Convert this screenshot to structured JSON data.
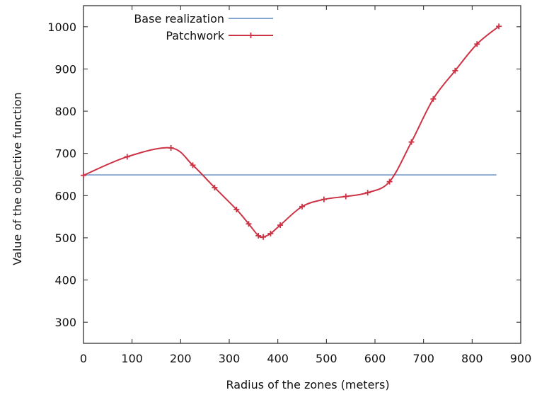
{
  "chart_data": {
    "type": "line",
    "xlabel": "Radius of the zones (meters)",
    "ylabel": "Value of the objective function",
    "xlim": [
      0,
      900
    ],
    "ylim": [
      250,
      1050
    ],
    "x_ticks": [
      "0",
      "100",
      "200",
      "300",
      "400",
      "500",
      "600",
      "700",
      "800",
      "900"
    ],
    "y_ticks": [
      "300",
      "400",
      "500",
      "600",
      "700",
      "800",
      "900",
      "1000"
    ],
    "grid": false,
    "legend_position": "top-left",
    "series": [
      {
        "name": "Base realization",
        "color": "#5b87c2",
        "markers": false,
        "x": [
          0,
          850
        ],
        "y": [
          649,
          649
        ]
      },
      {
        "name": "Patchwork",
        "color": "#cc3344",
        "markers": true,
        "x": [
          0,
          90,
          180,
          225,
          270,
          315,
          340,
          360,
          370,
          385,
          405,
          450,
          495,
          540,
          585,
          630,
          675,
          720,
          765,
          810,
          855
        ],
        "y": [
          648,
          692,
          713,
          672,
          619,
          567,
          533,
          505,
          502,
          510,
          530,
          574,
          591,
          598,
          607,
          633,
          727,
          829,
          896,
          959,
          1001
        ]
      }
    ]
  }
}
